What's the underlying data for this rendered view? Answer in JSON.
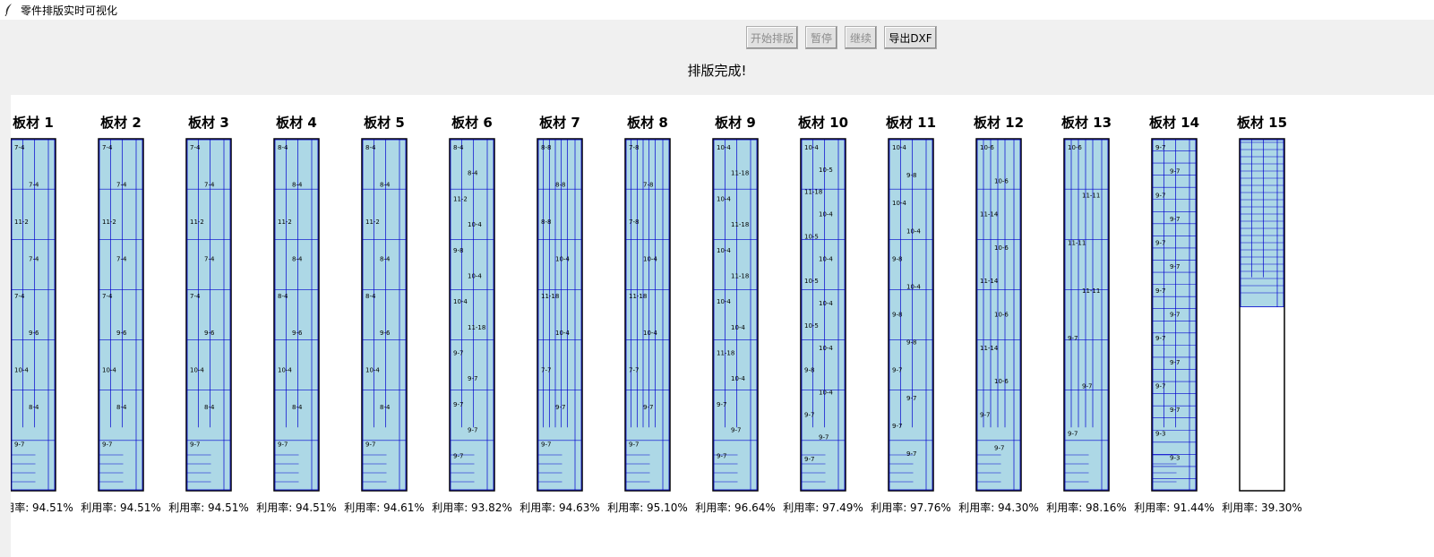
{
  "window": {
    "title": "零件排版实时可视化"
  },
  "toolbar": {
    "buttons": [
      {
        "label": "开始排版",
        "enabled": false
      },
      {
        "label": "暂停",
        "enabled": false
      },
      {
        "label": "继续",
        "enabled": false
      },
      {
        "label": "导出DXF",
        "enabled": true
      }
    ],
    "status": "排版完成!"
  },
  "colors": {
    "part_fill": "#add8e6",
    "part_stroke": "#0000cd",
    "board_stroke": "#000000"
  },
  "util_prefix": "利用率: ",
  "boards": [
    {
      "title": "板材 1",
      "utilization": "94.51%",
      "fill": 1.0,
      "labels": [
        "7-4",
        "7-4",
        "11-2",
        "7-4",
        "7-4",
        "9-6",
        "10-4",
        "8-4",
        "9-7"
      ]
    },
    {
      "title": "板材 2",
      "utilization": "94.51%",
      "fill": 1.0,
      "labels": [
        "7-4",
        "7-4",
        "11-2",
        "7-4",
        "7-4",
        "9-6",
        "10-4",
        "8-4",
        "9-7"
      ]
    },
    {
      "title": "板材 3",
      "utilization": "94.51%",
      "fill": 1.0,
      "labels": [
        "7-4",
        "7-4",
        "11-2",
        "7-4",
        "7-4",
        "9-6",
        "10-4",
        "8-4",
        "9-7"
      ]
    },
    {
      "title": "板材 4",
      "utilization": "94.51%",
      "fill": 1.0,
      "labels": [
        "8-4",
        "8-4",
        "11-2",
        "8-4",
        "8-4",
        "9-6",
        "10-4",
        "8-4",
        "9-7"
      ]
    },
    {
      "title": "板材 5",
      "utilization": "94.61%",
      "fill": 1.0,
      "labels": [
        "8-4",
        "8-4",
        "11-2",
        "8-4",
        "8-4",
        "9-6",
        "10-4",
        "8-4",
        "9-7"
      ]
    },
    {
      "title": "板材 6",
      "utilization": "93.82%",
      "fill": 1.0,
      "labels": [
        "8-4",
        "8-4",
        "11-2",
        "10-4",
        "9-8",
        "10-4",
        "10-4",
        "11-18",
        "9-7",
        "9-7",
        "9-7",
        "9-7",
        "9-7"
      ]
    },
    {
      "title": "板材 7",
      "utilization": "94.63%",
      "fill": 1.0,
      "labels": [
        "8-8",
        "8-8",
        "8-8",
        "10-4",
        "11-18",
        "10-4",
        "7-7",
        "9-7",
        "9-7"
      ]
    },
    {
      "title": "板材 8",
      "utilization": "95.10%",
      "fill": 1.0,
      "labels": [
        "7-8",
        "7-8",
        "7-8",
        "10-4",
        "11-18",
        "10-4",
        "7-7",
        "9-7",
        "9-7"
      ]
    },
    {
      "title": "板材 9",
      "utilization": "96.64%",
      "fill": 1.0,
      "labels": [
        "10-4",
        "11-18",
        "10-4",
        "11-18",
        "10-4",
        "11-18",
        "10-4",
        "10-4",
        "11-18",
        "10-4",
        "9-7",
        "9-7",
        "9-7"
      ]
    },
    {
      "title": "板材 10",
      "utilization": "97.49%",
      "fill": 1.0,
      "labels": [
        "10-4",
        "10-5",
        "11-18",
        "10-4",
        "10-5",
        "10-4",
        "10-5",
        "10-4",
        "10-5",
        "10-4",
        "9-8",
        "10-4",
        "9-7",
        "9-7",
        "9-7"
      ]
    },
    {
      "title": "板材 11",
      "utilization": "97.76%",
      "fill": 1.0,
      "labels": [
        "10-4",
        "9-8",
        "10-4",
        "10-4",
        "9-8",
        "10-4",
        "9-8",
        "9-8",
        "9-7",
        "9-7",
        "9-7",
        "9-7"
      ]
    },
    {
      "title": "板材 12",
      "utilization": "94.30%",
      "fill": 1.0,
      "labels": [
        "10-6",
        "10-6",
        "11-14",
        "10-6",
        "11-14",
        "10-6",
        "11-14",
        "10-6",
        "9-7",
        "9-7"
      ]
    },
    {
      "title": "板材 13",
      "utilization": "98.16%",
      "fill": 1.0,
      "labels": [
        "10-6",
        "11-11",
        "11-11",
        "11-11",
        "9-7",
        "9-7",
        "9-7"
      ]
    },
    {
      "title": "板材 14",
      "utilization": "91.44%",
      "fill": 1.0,
      "labels": [
        "9-7",
        "9-7",
        "9-7",
        "9-7",
        "9-7",
        "9-7",
        "9-7",
        "9-7",
        "9-7",
        "9-7",
        "9-7",
        "9-7",
        "9-3",
        "9-3"
      ]
    },
    {
      "title": "板材 15",
      "utilization": "39.30%",
      "fill": 0.48,
      "labels": []
    }
  ]
}
